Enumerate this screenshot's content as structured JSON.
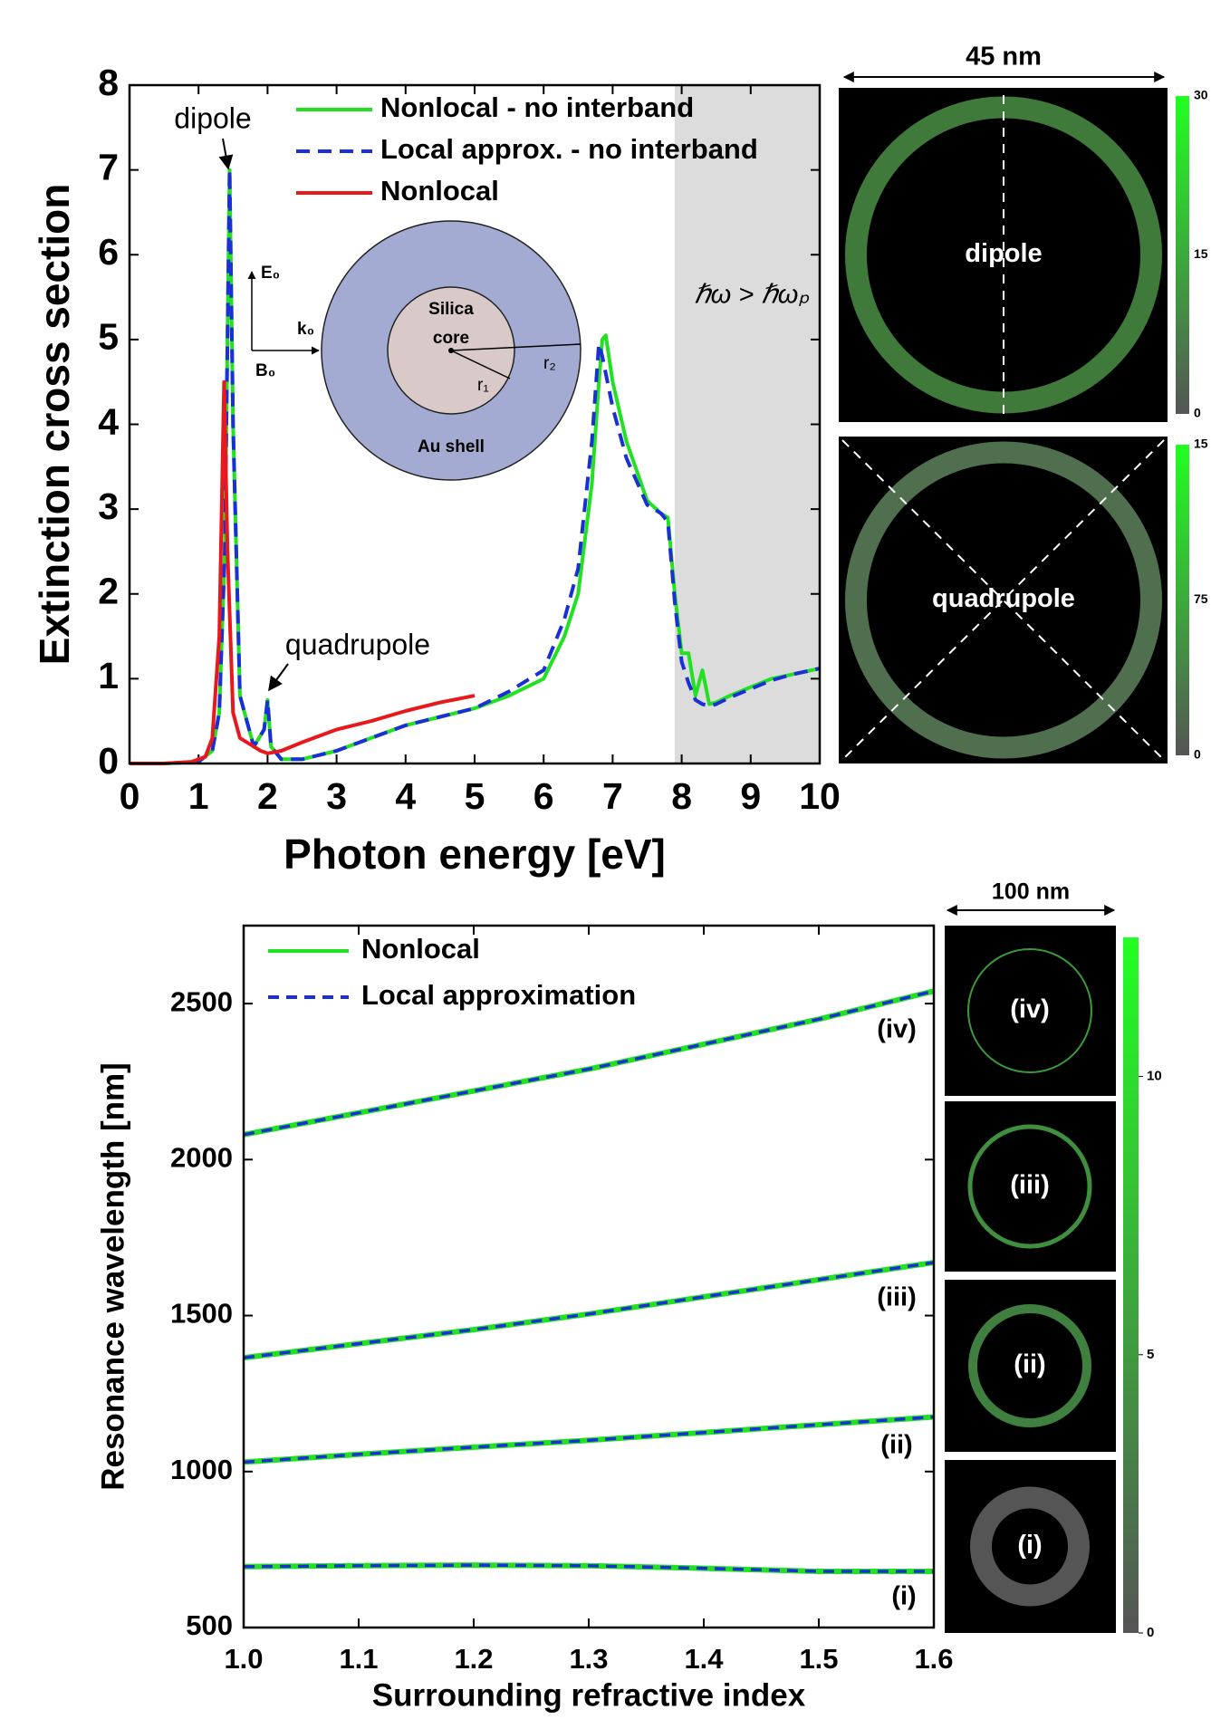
{
  "chart_data": [
    {
      "type": "line",
      "xlabel": "Photon energy [eV]",
      "ylabel": "Extinction cross section",
      "xlim": [
        0,
        10
      ],
      "ylim": [
        0,
        8
      ],
      "xticks": [
        0,
        1,
        2,
        3,
        4,
        5,
        6,
        7,
        8,
        9,
        10
      ],
      "yticks": [
        0,
        1,
        2,
        3,
        4,
        5,
        6,
        7,
        8
      ],
      "series": [
        {
          "name": "Nonlocal - no interband",
          "color": "#22e022",
          "style": "solid",
          "x": [
            0,
            0.5,
            1.0,
            1.2,
            1.3,
            1.38,
            1.45,
            1.5,
            1.6,
            1.8,
            1.95,
            2.0,
            2.05,
            2.2,
            2.5,
            3,
            3.5,
            4,
            4.5,
            5,
            5.5,
            6,
            6.3,
            6.5,
            6.7,
            6.8,
            6.85,
            6.9,
            7.0,
            7.2,
            7.5,
            7.7,
            7.8,
            7.9,
            8.0,
            8.1,
            8.2,
            8.3,
            8.4,
            8.5,
            8.7,
            9,
            9.3,
            9.6,
            10
          ],
          "values": [
            0,
            0,
            0.02,
            0.15,
            0.6,
            2.5,
            7.0,
            4.0,
            0.8,
            0.2,
            0.4,
            0.75,
            0.2,
            0.05,
            0.05,
            0.15,
            0.3,
            0.45,
            0.55,
            0.65,
            0.8,
            1.0,
            1.5,
            2.0,
            3.3,
            4.5,
            5.0,
            5.05,
            4.5,
            3.8,
            3.1,
            2.95,
            2.9,
            2.0,
            1.3,
            1.3,
            0.8,
            1.1,
            0.7,
            0.72,
            0.8,
            0.9,
            1.0,
            1.05,
            1.12
          ]
        },
        {
          "name": "Local approx. - no interband",
          "color": "#1a2fd6",
          "style": "dashed",
          "x": [
            0,
            0.5,
            1.0,
            1.2,
            1.3,
            1.38,
            1.45,
            1.5,
            1.6,
            1.8,
            1.95,
            2.0,
            2.05,
            2.2,
            2.5,
            3,
            3.5,
            4,
            4.5,
            5,
            5.5,
            6,
            6.3,
            6.5,
            6.7,
            6.8,
            6.85,
            6.9,
            7.0,
            7.2,
            7.5,
            7.7,
            7.8,
            7.9,
            8.0,
            8.1,
            8.2,
            8.3,
            8.4,
            8.5,
            8.7,
            9,
            9.3,
            9.6,
            10
          ],
          "values": [
            0,
            0,
            0.02,
            0.15,
            0.6,
            2.5,
            7.0,
            4.0,
            0.8,
            0.2,
            0.4,
            0.75,
            0.2,
            0.05,
            0.05,
            0.15,
            0.3,
            0.45,
            0.55,
            0.65,
            0.85,
            1.1,
            1.7,
            2.3,
            3.8,
            4.95,
            4.8,
            4.6,
            4.2,
            3.6,
            3.05,
            2.95,
            2.85,
            1.9,
            1.2,
            0.95,
            0.75,
            0.7,
            0.68,
            0.7,
            0.78,
            0.88,
            0.98,
            1.05,
            1.12
          ]
        },
        {
          "name": "Nonlocal",
          "color": "#e8191c",
          "style": "solid",
          "x": [
            0,
            0.5,
            0.9,
            1.1,
            1.2,
            1.3,
            1.37,
            1.42,
            1.5,
            1.6,
            1.7,
            1.8,
            1.9,
            2.0,
            2.2,
            2.5,
            3,
            3.5,
            4,
            4.5,
            5
          ],
          "values": [
            0,
            0,
            0.02,
            0.08,
            0.3,
            1.5,
            4.5,
            2.5,
            0.6,
            0.3,
            0.25,
            0.2,
            0.15,
            0.12,
            0.15,
            0.25,
            0.4,
            0.5,
            0.62,
            0.72,
            0.8
          ]
        }
      ],
      "shaded_xrange": [
        7.9,
        10
      ],
      "shaded_label": "ℏω > ℏωₚ",
      "annotations": [
        "dipole",
        "quadrupole"
      ],
      "inset": {
        "core_label": [
          "Silica",
          "core"
        ],
        "shell_label": "Au shell",
        "E": "E₀",
        "k": "k₀",
        "B": "B₀",
        "r1": "r₁",
        "r2": "r₂"
      },
      "field_maps": {
        "scale": "45 nm",
        "panels": [
          {
            "label": "dipole",
            "colorbar": [
              "30",
              "15",
              "0"
            ]
          },
          {
            "label": "quadrupole",
            "colorbar": [
              "15",
              "75",
              "0"
            ]
          }
        ]
      }
    },
    {
      "type": "line",
      "xlabel": "Surrounding refractive index",
      "ylabel": "Resonance wavelength [nm]",
      "xlim": [
        1,
        1.6
      ],
      "ylim": [
        500,
        2750
      ],
      "xticks": [
        {
          "value": 1,
          "label": "1.0"
        },
        1.1,
        1.2,
        1.3,
        1.4,
        1.5,
        1.6
      ],
      "yticks": [
        500,
        1000,
        1500,
        2000,
        2500
      ],
      "x": [
        1.0,
        1.1,
        1.2,
        1.3,
        1.4,
        1.5,
        1.6
      ],
      "series": [
        {
          "name": "Nonlocal",
          "color": "#22e022",
          "style": "solid",
          "branches": [
            {
              "values": [
                695,
                698,
                700,
                698,
                690,
                680,
                680
              ]
            },
            {
              "values": [
                1030,
                1055,
                1078,
                1100,
                1125,
                1150,
                1175
              ]
            },
            {
              "values": [
                1365,
                1410,
                1455,
                1505,
                1560,
                1615,
                1670
              ]
            },
            {
              "values": [
                2080,
                2150,
                2220,
                2290,
                2370,
                2450,
                2540
              ]
            }
          ]
        },
        {
          "name": "Local approximation",
          "color": "#1a2fd6",
          "style": "dashed",
          "branches": [
            {
              "values": [
                695,
                698,
                700,
                698,
                690,
                680,
                680
              ]
            },
            {
              "values": [
                1030,
                1055,
                1078,
                1100,
                1125,
                1150,
                1175
              ]
            },
            {
              "values": [
                1365,
                1410,
                1455,
                1505,
                1560,
                1615,
                1670
              ]
            },
            {
              "values": [
                2080,
                2150,
                2220,
                2290,
                2370,
                2450,
                2540
              ]
            }
          ]
        }
      ],
      "curve_labels": [
        "(i)",
        "(ii)",
        "(iii)",
        "(iv)"
      ],
      "field_maps": {
        "scale": "100 nm",
        "panels": [
          {
            "label": "(iv)"
          },
          {
            "label": "(iii)"
          },
          {
            "label": "(ii)"
          },
          {
            "label": "(i)"
          }
        ],
        "colorbar": {
          "lim": [
            0,
            12.5
          ],
          "ticks": [
            10,
            5,
            0
          ]
        }
      }
    }
  ]
}
